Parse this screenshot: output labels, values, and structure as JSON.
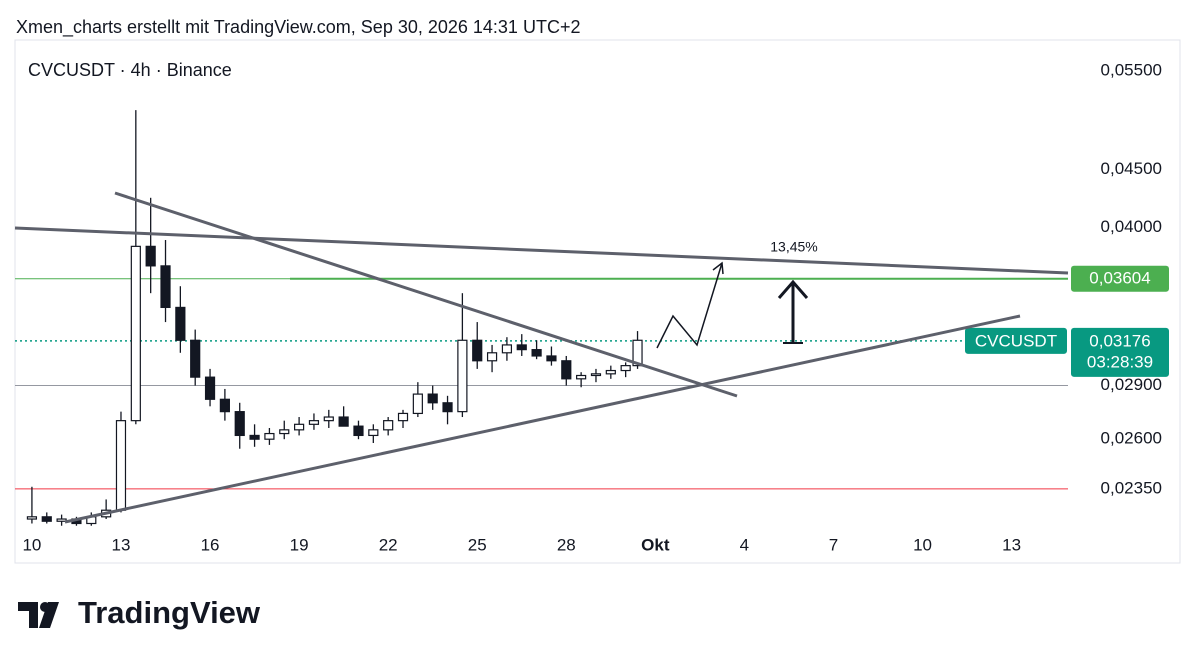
{
  "header": "Xmen_charts erstellt mit TradingView.com, Sep 30, 2026 14:31 UTC+2",
  "brand": "TradingView",
  "chart_data": {
    "type": "candlestick",
    "title": "CVCUSDT · 4h · Binance",
    "yscale": "log",
    "ylim": [
      0.0217,
      0.0586
    ],
    "yticks": [
      {
        "value": 0.055,
        "label": "0,05500"
      },
      {
        "value": 0.045,
        "label": "0,04500"
      },
      {
        "value": 0.04,
        "label": "0,04000"
      },
      {
        "value": 0.029,
        "label": "0,02900"
      },
      {
        "value": 0.026,
        "label": "0,02600"
      },
      {
        "value": 0.0235,
        "label": "0,02350"
      }
    ],
    "xlim": [
      -0.57,
      34.9
    ],
    "xticks": [
      {
        "value": 0,
        "label": "10"
      },
      {
        "value": 3,
        "label": "13"
      },
      {
        "value": 6,
        "label": "16"
      },
      {
        "value": 9,
        "label": "19"
      },
      {
        "value": 12,
        "label": "22"
      },
      {
        "value": 15,
        "label": "25"
      },
      {
        "value": 18,
        "label": "28"
      },
      {
        "value": 21,
        "label": "Okt"
      },
      {
        "value": 24,
        "label": "4"
      },
      {
        "value": 27,
        "label": "7"
      },
      {
        "value": 30,
        "label": "10"
      },
      {
        "value": 33,
        "label": "13"
      }
    ],
    "up_color": "#ffffff",
    "down_color": "#131722",
    "border_color": "#131722",
    "x": [
      0,
      0.5,
      1,
      1.5,
      2,
      2.5,
      3,
      3.5,
      4,
      4.5,
      5,
      5.5,
      6,
      6.5,
      7,
      7.5,
      8,
      8.5,
      9,
      9.5,
      10,
      10.5,
      11,
      11.5,
      12,
      12.5,
      13,
      13.5,
      14,
      14.5,
      15,
      15.5,
      16,
      16.5,
      17,
      17.5,
      18,
      18.5,
      19,
      19.5,
      20,
      20.4
    ],
    "open": [
      0.0221,
      0.0222,
      0.022,
      0.0221,
      0.0219,
      0.0222,
      0.0225,
      0.027,
      0.0385,
      0.037,
      0.034,
      0.0318,
      0.0295,
      0.0282,
      0.0275,
      0.0262,
      0.026,
      0.0263,
      0.0265,
      0.0268,
      0.027,
      0.0272,
      0.0267,
      0.0262,
      0.0265,
      0.027,
      0.0274,
      0.0285,
      0.028,
      0.0275,
      0.0318,
      0.0305,
      0.031,
      0.0315,
      0.0312,
      0.0308,
      0.0305,
      0.0294,
      0.0296,
      0.0297,
      0.0299,
      0.0302
    ],
    "high": [
      0.0236,
      0.0224,
      0.0223,
      0.0222,
      0.0224,
      0.023,
      0.0275,
      0.0508,
      0.0425,
      0.039,
      0.0355,
      0.0325,
      0.03,
      0.0288,
      0.028,
      0.0268,
      0.0266,
      0.027,
      0.0272,
      0.0274,
      0.0276,
      0.0278,
      0.027,
      0.0268,
      0.0272,
      0.0276,
      0.0292,
      0.029,
      0.0284,
      0.035,
      0.033,
      0.0315,
      0.032,
      0.0322,
      0.0318,
      0.0314,
      0.0308,
      0.0298,
      0.03,
      0.0302,
      0.0304,
      0.0324
    ],
    "low": [
      0.0219,
      0.0219,
      0.0218,
      0.0218,
      0.0218,
      0.0221,
      0.0224,
      0.0268,
      0.035,
      0.033,
      0.031,
      0.029,
      0.0278,
      0.027,
      0.0255,
      0.0256,
      0.0257,
      0.026,
      0.0262,
      0.0265,
      0.0266,
      0.0268,
      0.026,
      0.0258,
      0.0262,
      0.0266,
      0.0272,
      0.0276,
      0.0268,
      0.0272,
      0.03,
      0.0298,
      0.0305,
      0.0308,
      0.0306,
      0.0302,
      0.029,
      0.0289,
      0.0292,
      0.0294,
      0.0295,
      0.03
    ],
    "close": [
      0.0222,
      0.022,
      0.0221,
      0.0219,
      0.0222,
      0.0225,
      0.027,
      0.0385,
      0.037,
      0.034,
      0.0318,
      0.0295,
      0.0282,
      0.0275,
      0.0262,
      0.026,
      0.0263,
      0.0265,
      0.0268,
      0.027,
      0.0272,
      0.0267,
      0.0262,
      0.0265,
      0.027,
      0.0274,
      0.0285,
      0.028,
      0.0275,
      0.0318,
      0.0305,
      0.031,
      0.0315,
      0.0312,
      0.0308,
      0.0305,
      0.0294,
      0.0296,
      0.0297,
      0.0299,
      0.0302,
      0.0318
    ],
    "levels": [
      {
        "value": 0.03604,
        "label": "0,03604",
        "color": "#4caf50"
      },
      {
        "value": 0.029,
        "color": "#9598a1"
      },
      {
        "value": 0.0235,
        "color": "#f23645"
      }
    ],
    "last_price": {
      "value": 0.03176,
      "label": "0,03176",
      "symbol": "CVCUSDT",
      "countdown": "03:28:39",
      "color": "#089981"
    },
    "annotation": "13,45%"
  }
}
